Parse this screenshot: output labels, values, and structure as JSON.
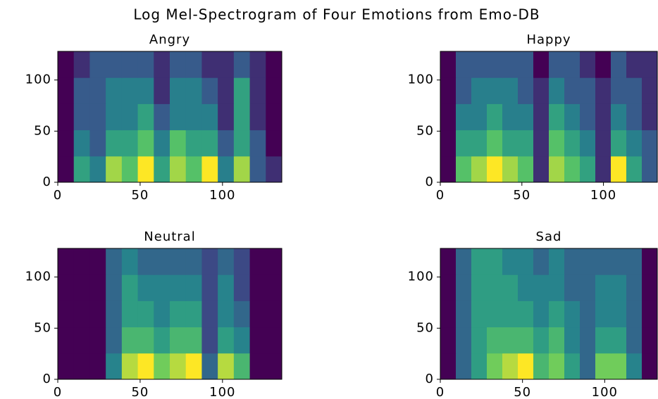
{
  "title": "Log Mel-Spectrogram of Four Emotions from Emo-DB",
  "chart_data": [
    {
      "type": "heatmap",
      "title": "Angry",
      "colormap": "viridis",
      "xlim": [
        0,
        136
      ],
      "ylim": [
        0,
        128
      ],
      "xticks": [
        0,
        50,
        100
      ],
      "yticks": [
        0,
        50,
        100
      ],
      "z": [
        [
          0.2,
          0.6,
          0.5,
          0.8,
          0.7,
          0.9,
          0.6,
          0.8,
          0.7,
          0.9,
          0.5,
          0.8,
          0.4,
          0.3
        ],
        [
          0.2,
          0.5,
          0.4,
          0.6,
          0.6,
          0.7,
          0.5,
          0.7,
          0.6,
          0.6,
          0.4,
          0.6,
          0.4,
          0.2
        ],
        [
          0.2,
          0.4,
          0.4,
          0.5,
          0.5,
          0.6,
          0.4,
          0.5,
          0.5,
          0.5,
          0.3,
          0.6,
          0.3,
          0.2
        ],
        [
          0.2,
          0.4,
          0.4,
          0.5,
          0.5,
          0.5,
          0.3,
          0.5,
          0.5,
          0.4,
          0.3,
          0.6,
          0.3,
          0.2
        ],
        [
          0.2,
          0.3,
          0.4,
          0.4,
          0.4,
          0.4,
          0.3,
          0.4,
          0.4,
          0.3,
          0.3,
          0.4,
          0.3,
          0.2
        ]
      ]
    },
    {
      "type": "heatmap",
      "title": "Happy",
      "colormap": "viridis",
      "xlim": [
        0,
        133
      ],
      "ylim": [
        0,
        128
      ],
      "xticks": [
        0,
        50,
        100
      ],
      "yticks": [
        0,
        50,
        100
      ],
      "z": [
        [
          0.1,
          0.6,
          0.7,
          0.8,
          0.7,
          0.6,
          0.2,
          0.7,
          0.6,
          0.5,
          0.2,
          0.8,
          0.5,
          0.3
        ],
        [
          0.1,
          0.5,
          0.5,
          0.6,
          0.5,
          0.5,
          0.2,
          0.6,
          0.5,
          0.4,
          0.2,
          0.5,
          0.4,
          0.3
        ],
        [
          0.1,
          0.4,
          0.4,
          0.5,
          0.4,
          0.4,
          0.2,
          0.5,
          0.4,
          0.3,
          0.2,
          0.4,
          0.3,
          0.2
        ],
        [
          0.1,
          0.3,
          0.4,
          0.4,
          0.4,
          0.3,
          0.2,
          0.4,
          0.3,
          0.3,
          0.2,
          0.3,
          0.3,
          0.2
        ],
        [
          0.1,
          0.3,
          0.3,
          0.3,
          0.3,
          0.3,
          0.1,
          0.3,
          0.3,
          0.2,
          0.1,
          0.3,
          0.2,
          0.2
        ]
      ]
    },
    {
      "type": "heatmap",
      "title": "Neutral",
      "colormap": "viridis",
      "xlim": [
        0,
        136
      ],
      "ylim": [
        0,
        128
      ],
      "xticks": [
        0,
        50,
        100
      ],
      "yticks": [
        0,
        50,
        100
      ],
      "z": [
        [
          0.0,
          0.0,
          0.0,
          0.4,
          0.8,
          0.9,
          0.7,
          0.8,
          0.9,
          0.3,
          0.8,
          0.6,
          0.0,
          0.0
        ],
        [
          0.0,
          0.0,
          0.0,
          0.3,
          0.6,
          0.6,
          0.5,
          0.6,
          0.6,
          0.2,
          0.5,
          0.4,
          0.0,
          0.0
        ],
        [
          0.0,
          0.0,
          0.0,
          0.3,
          0.5,
          0.5,
          0.4,
          0.5,
          0.5,
          0.2,
          0.4,
          0.3,
          0.0,
          0.0
        ],
        [
          0.0,
          0.0,
          0.0,
          0.3,
          0.5,
          0.4,
          0.4,
          0.4,
          0.4,
          0.2,
          0.4,
          0.2,
          0.0,
          0.0
        ],
        [
          0.0,
          0.0,
          0.0,
          0.3,
          0.4,
          0.3,
          0.3,
          0.3,
          0.3,
          0.2,
          0.3,
          0.2,
          0.0,
          0.0
        ]
      ]
    },
    {
      "type": "heatmap",
      "title": "Sad",
      "colormap": "viridis",
      "xlim": [
        0,
        132
      ],
      "ylim": [
        0,
        128
      ],
      "xticks": [
        0,
        50,
        100
      ],
      "yticks": [
        0,
        50,
        100
      ],
      "z": [
        [
          0.0,
          0.3,
          0.5,
          0.7,
          0.8,
          0.9,
          0.6,
          0.7,
          0.5,
          0.3,
          0.7,
          0.7,
          0.4,
          0.0
        ],
        [
          0.0,
          0.3,
          0.5,
          0.6,
          0.6,
          0.6,
          0.5,
          0.6,
          0.4,
          0.3,
          0.5,
          0.5,
          0.3,
          0.0
        ],
        [
          0.0,
          0.3,
          0.5,
          0.5,
          0.5,
          0.5,
          0.4,
          0.5,
          0.4,
          0.3,
          0.4,
          0.4,
          0.3,
          0.0
        ],
        [
          0.0,
          0.3,
          0.5,
          0.5,
          0.5,
          0.4,
          0.4,
          0.4,
          0.3,
          0.3,
          0.4,
          0.4,
          0.3,
          0.0
        ],
        [
          0.0,
          0.3,
          0.5,
          0.5,
          0.4,
          0.4,
          0.3,
          0.4,
          0.3,
          0.3,
          0.3,
          0.3,
          0.3,
          0.0
        ]
      ]
    }
  ]
}
